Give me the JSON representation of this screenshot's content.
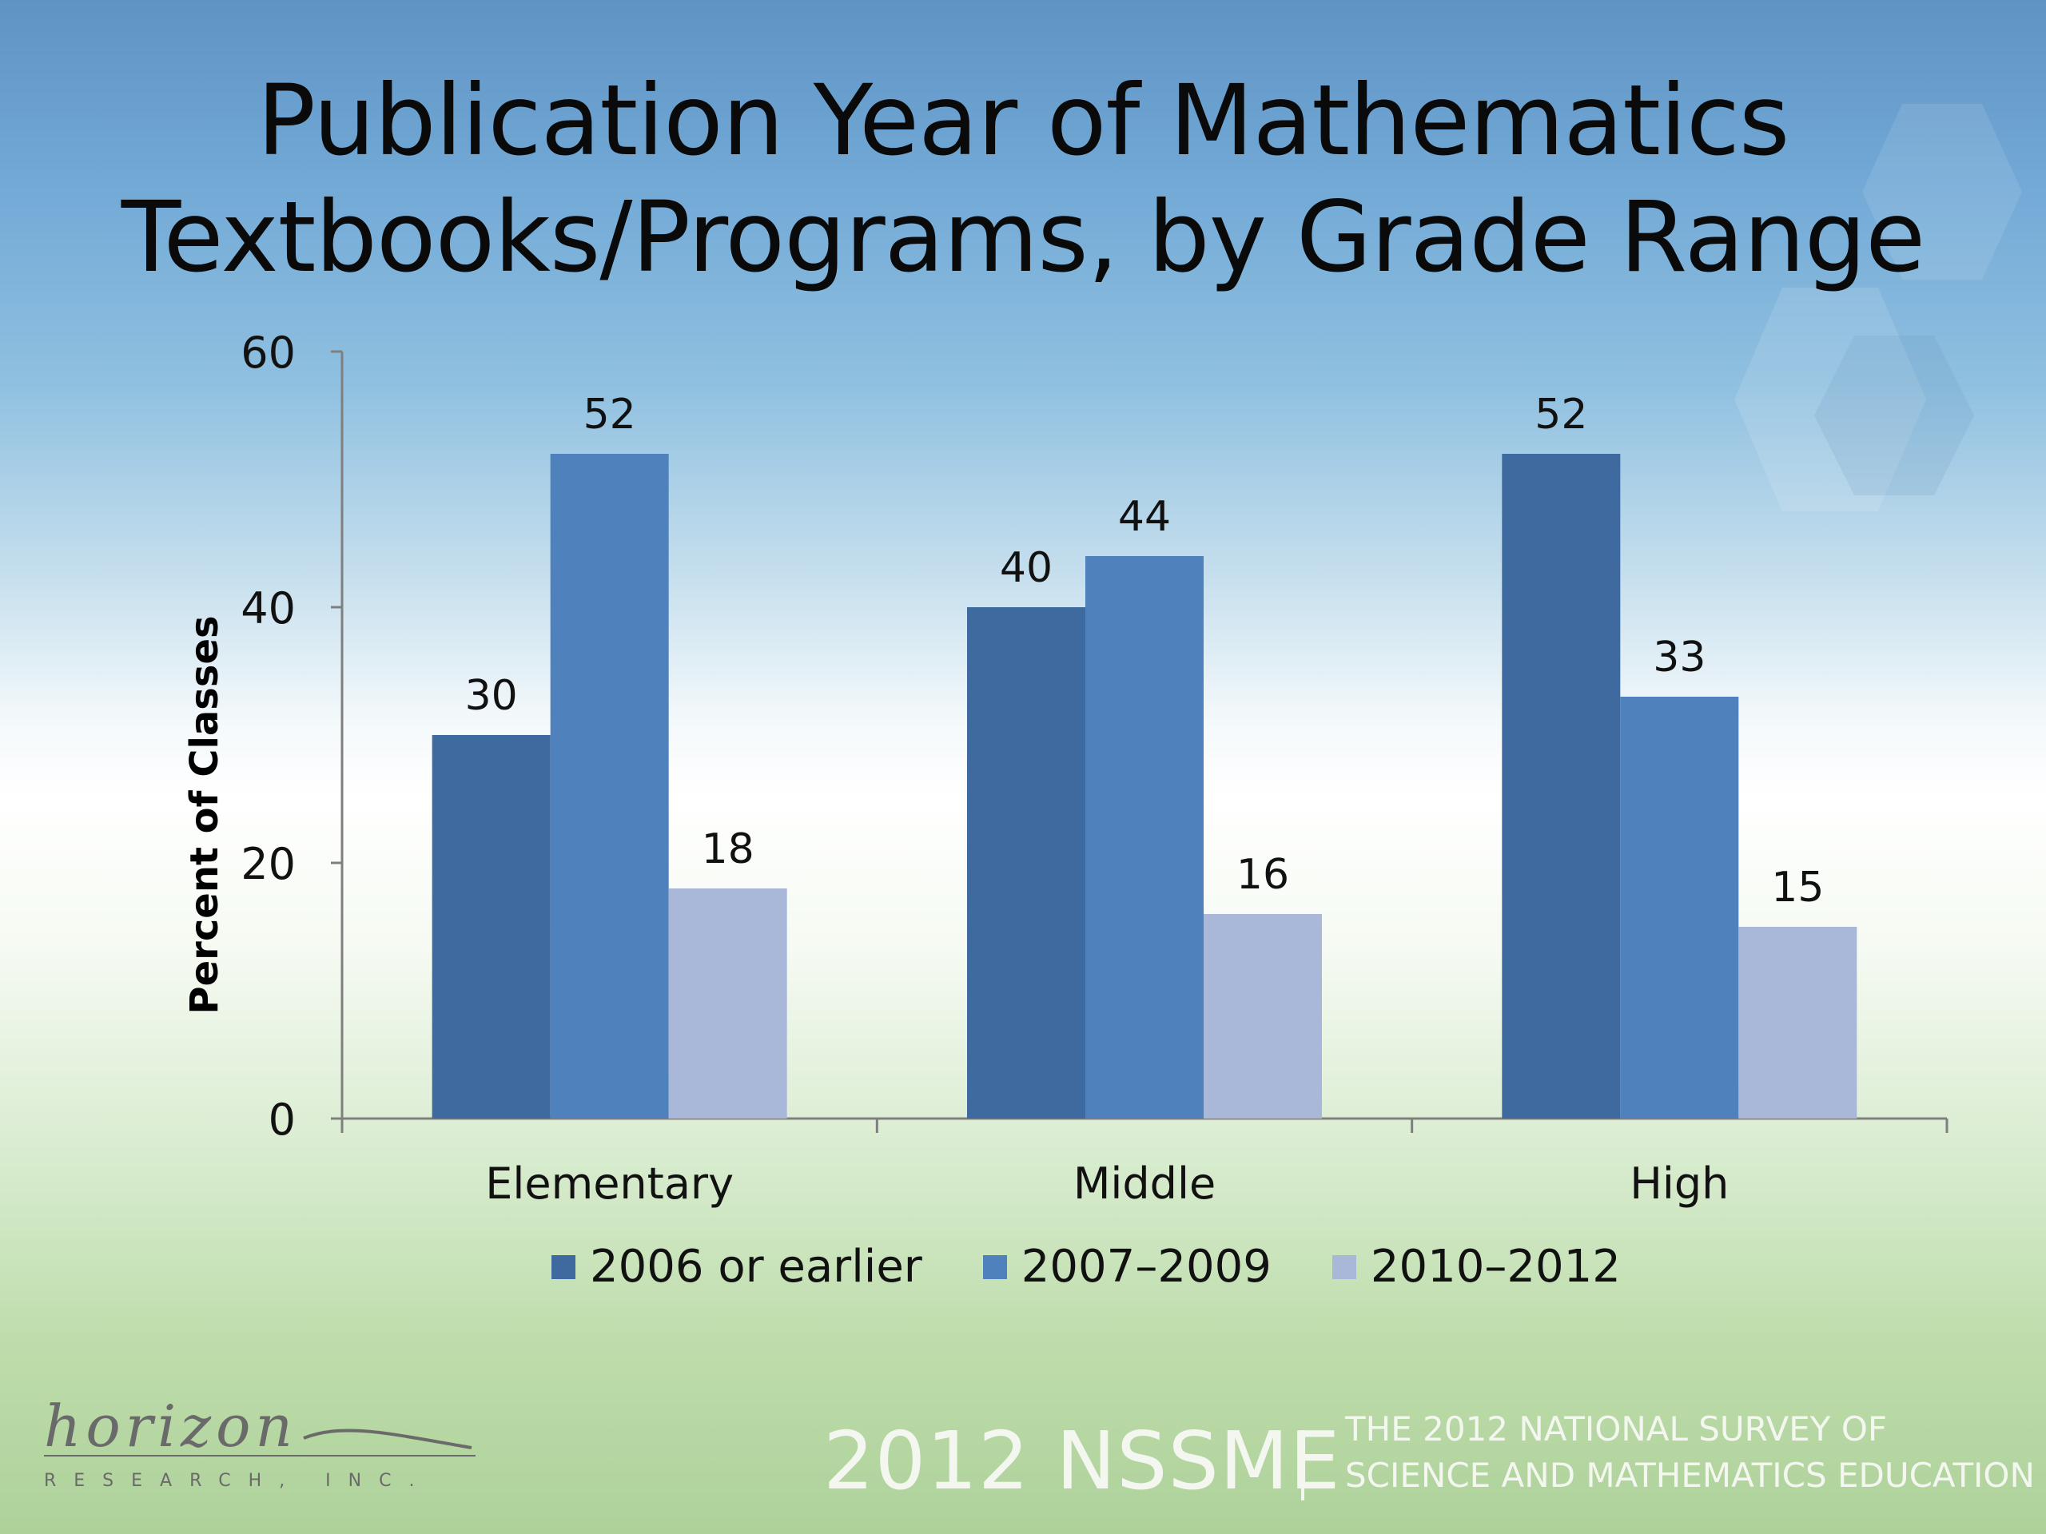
{
  "chart_data": {
    "type": "bar",
    "title_lines": [
      "Publication Year of Mathematics",
      "Textbooks/Programs, by Grade Range"
    ],
    "xlabel": "",
    "ylabel": "Percent of Classes",
    "ylim": [
      0,
      60
    ],
    "yticks": [
      "0",
      "20",
      "40",
      "60"
    ],
    "categories": [
      "Elementary",
      "Middle",
      "High"
    ],
    "series": [
      {
        "name": "2006 or earlier",
        "values": [
          30,
          40,
          52
        ],
        "color": "#3e6a9f"
      },
      {
        "name": "2007–2009",
        "values": [
          52,
          44,
          33
        ],
        "color": "#4f81bd"
      },
      {
        "name": "2010–2012",
        "values": [
          18,
          16,
          15
        ],
        "color": "#a9b8d9"
      }
    ],
    "legend_position": "bottom",
    "grid": false
  },
  "footer": {
    "brand": "2012 NSSME",
    "subtitle_line1": "THE 2012 NATIONAL SURVEY OF",
    "subtitle_line2": "SCIENCE AND MATHEMATICS EDUCATION",
    "logo_text": "horizon",
    "logo_sub": "RESEARCH, INC."
  }
}
